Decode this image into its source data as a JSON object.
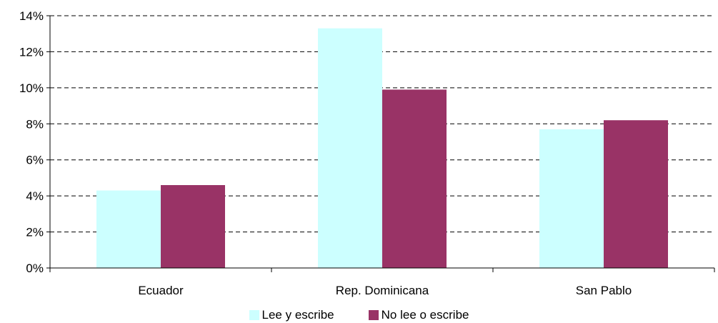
{
  "chart_data": {
    "type": "bar",
    "categories": [
      "Ecuador",
      "Rep. Dominicana",
      "San Pablo"
    ],
    "series": [
      {
        "name": "Lee y escribe",
        "values": [
          4.3,
          13.3,
          7.7
        ],
        "color": "#ccffff"
      },
      {
        "name": "No lee o escribe",
        "values": [
          4.6,
          9.9,
          8.2
        ],
        "color": "#993366"
      }
    ],
    "y_ticks": [
      "0%",
      "2%",
      "4%",
      "6%",
      "8%",
      "10%",
      "12%",
      "14%"
    ],
    "ylim": [
      0,
      14
    ],
    "grid": "dashed horizontal",
    "legend_position": "bottom"
  }
}
